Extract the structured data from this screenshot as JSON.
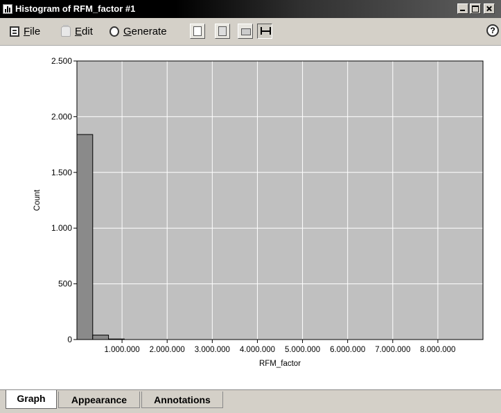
{
  "window": {
    "title": "Histogram of RFM_factor #1"
  },
  "menu": {
    "file": {
      "first": "F",
      "rest": "ile"
    },
    "edit": {
      "first": "E",
      "rest": "dit"
    },
    "generate": {
      "first": "G",
      "rest": "enerate"
    },
    "help": "?"
  },
  "toolbar": [
    "copy-icon",
    "export-icon",
    "print-icon",
    "fit-icon"
  ],
  "tabs": [
    {
      "label": "Graph",
      "active": true
    },
    {
      "label": "Appearance",
      "active": false
    },
    {
      "label": "Annotations",
      "active": false
    }
  ],
  "colors": {
    "plot_bg": "#c0c0c0",
    "bar_fill": "#8a8a8a",
    "grid": "#ffffff"
  },
  "chart_data": {
    "type": "bar",
    "xlabel": "RFM_factor",
    "ylabel": "Count",
    "xlim": [
      0,
      9000000
    ],
    "ylim": [
      0,
      2500
    ],
    "grid": true,
    "x_ticks": [
      1000000,
      2000000,
      3000000,
      4000000,
      5000000,
      6000000,
      7000000,
      8000000
    ],
    "x_tick_labels": [
      "1.000.000",
      "2.000.000",
      "3.000.000",
      "4.000.000",
      "5.000.000",
      "6.000.000",
      "7.000.000",
      "8.000.000"
    ],
    "y_ticks": [
      0,
      500,
      1000,
      1500,
      2000,
      2500
    ],
    "y_tick_labels": [
      "0",
      "500",
      "1.000",
      "1.500",
      "2.000",
      "2.500"
    ],
    "bins": [
      {
        "x0": 0,
        "x1": 350000,
        "count": 1840
      },
      {
        "x0": 350000,
        "x1": 700000,
        "count": 40
      },
      {
        "x0": 700000,
        "x1": 1050000,
        "count": 5
      }
    ]
  }
}
